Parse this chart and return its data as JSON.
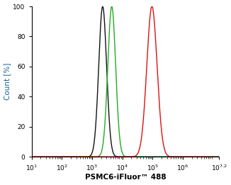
{
  "xlabel": "PSMC6-iFluor™ 488",
  "ylabel": "Count [%]",
  "xmin_log": 1,
  "xmax_log": 7.2,
  "ymin": 0,
  "ymax": 100,
  "yticks": [
    0,
    20,
    40,
    60,
    80,
    100
  ],
  "xtick_log_positions": [
    1,
    2,
    3,
    4,
    5,
    6,
    7.2
  ],
  "curves": [
    {
      "color": "#111111",
      "peak_log": 3.35,
      "sigma": 0.13,
      "amplitude": 100
    },
    {
      "color": "#22aa22",
      "peak_log": 3.65,
      "sigma": 0.13,
      "amplitude": 100
    },
    {
      "color": "#dd1111",
      "peak_log": 4.98,
      "sigma": 0.17,
      "amplitude": 100
    }
  ],
  "ylabel_color": "#1a6496",
  "xlabel_color": "#000000",
  "tick_color": "#000000",
  "background_color": "#ffffff",
  "linewidth": 1.0
}
